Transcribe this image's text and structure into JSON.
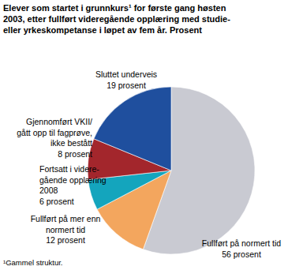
{
  "chart_data": {
    "type": "pie",
    "title": "Elever som startet i grunnkurs¹ for første gang høsten\n2003, etter fullført videregående opplæring med studie-\neller yrkeskompetanse i løpet av fem år. Prosent",
    "categories": [
      "Fullført på normert tid",
      "Fullført på mer enn\nnormert tid",
      "Fortsatt i videre-\ngående opplæring\n2008",
      "Gjennomført VKII/\ngått opp til fagprøve,\nikke bestått",
      "Sluttet underveis"
    ],
    "values": [
      56,
      12,
      6,
      8,
      19
    ],
    "value_labels": [
      "56 prosent",
      "12 prosent",
      "6 prosent",
      "8 prosent",
      "19 prosent"
    ],
    "colors": [
      "#c9cad2",
      "#f3a65e",
      "#14a5bd",
      "#a3262c",
      "#1f4f9e"
    ],
    "data_labels": true,
    "footnote": "¹Gammel struktur."
  }
}
